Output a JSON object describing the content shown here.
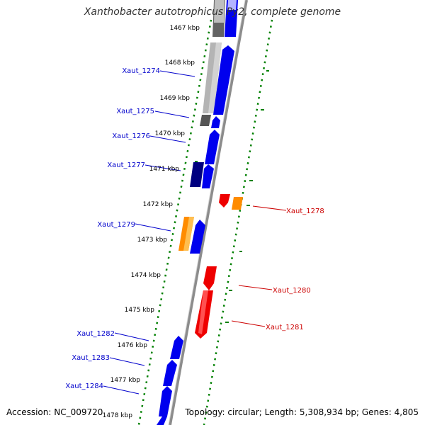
{
  "title": "Xanthobacter autotrophicus Py2, complete genome",
  "footer": {
    "accession": "Accession: NC_009720",
    "topology": "Topology: circular; Length: 5,308,934 bp; Genes: 4,805"
  },
  "colors": {
    "forward_gene": "#0000ee",
    "reverse_gene": "#ee0000",
    "orange_gene": "#ff8c00",
    "navy_gene": "#000080",
    "grey_gene": "#b4b4b4",
    "dark_grey_gene": "#555555",
    "backbone": "#8c8c8c",
    "gc_dots": "#008000",
    "forward_label": "#0000cc",
    "reverse_label": "#cc0000"
  },
  "scale": {
    "unit": "kbp",
    "ticks": [
      "1467 kbp",
      "1468 kbp",
      "1469 kbp",
      "1470 kbp",
      "1471 kbp",
      "1472 kbp",
      "1473 kbp",
      "1474 kbp",
      "1475 kbp",
      "1476 kbp",
      "1477 kbp",
      "1478 kbp"
    ]
  },
  "genes": {
    "forward_labels": [
      "Xaut_1274",
      "Xaut_1275",
      "Xaut_1276",
      "Xaut_1277",
      "Xaut_1279",
      "Xaut_1282",
      "Xaut_1283",
      "Xaut_1284"
    ],
    "reverse_labels": [
      "Xaut_1278",
      "Xaut_1280",
      "Xaut_1281"
    ]
  }
}
